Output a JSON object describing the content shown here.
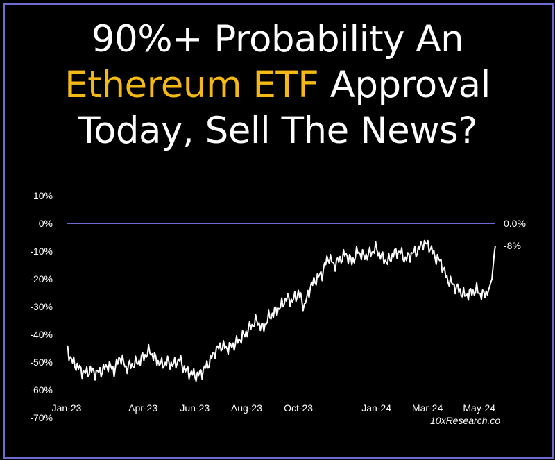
{
  "headline": {
    "line1": "90%+ Probability An",
    "line2_highlight": "Ethereum ETF",
    "line2_rest": " Approval",
    "line3": "Today, Sell The News?"
  },
  "source": "10xResearch.co",
  "colors": {
    "background": "#000000",
    "border": "#6b6bd0",
    "highlight": "#f5b915",
    "series": "#ffffff",
    "reference_line": "#6b6bd0"
  },
  "chart_data": {
    "type": "line",
    "title": "",
    "xlabel": "",
    "ylabel": "",
    "ylim": [
      -70,
      10
    ],
    "xlim": [
      "2023-01-01",
      "2024-05-20"
    ],
    "y_ticks": [
      10,
      0,
      -10,
      -20,
      -30,
      -40,
      -50,
      -60,
      -70
    ],
    "y_tick_labels": [
      "10%",
      "0%",
      "-10%",
      "-20%",
      "-30%",
      "-40%",
      "-50%",
      "-60%",
      "-70%"
    ],
    "x_ticks": [
      "2023-01-01",
      "2023-04-01",
      "2023-06-01",
      "2023-08-01",
      "2023-10-01",
      "2024-01-01",
      "2024-03-01",
      "2024-05-01"
    ],
    "x_tick_labels": [
      "Jan-23",
      "Apr-23",
      "Jun-23",
      "Aug-23",
      "Oct-23",
      "Jan-24",
      "Mar-24",
      "May-24"
    ],
    "grid": false,
    "legend": "none",
    "reference_line": {
      "y": 0,
      "label": "0.0%"
    },
    "end_label": "-8%",
    "series": [
      {
        "x": [
          "2023-01-01",
          "2023-01-08",
          "2023-01-15",
          "2023-01-22",
          "2023-01-29",
          "2023-02-05",
          "2023-02-12",
          "2023-02-19",
          "2023-02-26",
          "2023-03-05",
          "2023-03-12",
          "2023-03-19",
          "2023-03-26",
          "2023-04-02",
          "2023-04-09",
          "2023-04-16",
          "2023-04-23",
          "2023-04-30",
          "2023-05-07",
          "2023-05-14",
          "2023-05-21",
          "2023-05-28",
          "2023-06-04",
          "2023-06-11",
          "2023-06-18",
          "2023-06-25",
          "2023-07-02",
          "2023-07-09",
          "2023-07-16",
          "2023-07-23",
          "2023-07-30",
          "2023-08-06",
          "2023-08-13",
          "2023-08-20",
          "2023-08-27",
          "2023-09-03",
          "2023-09-10",
          "2023-09-17",
          "2023-09-24",
          "2023-10-01",
          "2023-10-08",
          "2023-10-15",
          "2023-10-22",
          "2023-10-29",
          "2023-11-05",
          "2023-11-12",
          "2023-11-19",
          "2023-11-26",
          "2023-12-03",
          "2023-12-10",
          "2023-12-17",
          "2023-12-24",
          "2023-12-31",
          "2024-01-07",
          "2024-01-14",
          "2024-01-21",
          "2024-01-28",
          "2024-02-04",
          "2024-02-11",
          "2024-02-18",
          "2024-02-25",
          "2024-03-03",
          "2024-03-10",
          "2024-03-17",
          "2024-03-24",
          "2024-03-31",
          "2024-04-07",
          "2024-04-14",
          "2024-04-21",
          "2024-04-28",
          "2024-05-05",
          "2024-05-12",
          "2024-05-16",
          "2024-05-19",
          "2024-05-20"
        ],
        "values": [
          -45,
          -50,
          -52,
          -54,
          -53,
          -54,
          -53,
          -51,
          -53,
          -48,
          -52,
          -51,
          -50,
          -48,
          -46,
          -49,
          -51,
          -50,
          -51,
          -49,
          -53,
          -54,
          -55,
          -53,
          -50,
          -46,
          -44,
          -45,
          -44,
          -42,
          -40,
          -37,
          -35,
          -38,
          -34,
          -32,
          -30,
          -27,
          -28,
          -25,
          -30,
          -23,
          -20,
          -18,
          -12,
          -15,
          -13,
          -11,
          -14,
          -10,
          -12,
          -11,
          -9,
          -12,
          -14,
          -11,
          -10,
          -13,
          -11,
          -10,
          -7,
          -8,
          -12,
          -14,
          -20,
          -22,
          -24,
          -26,
          -25,
          -24,
          -26,
          -24,
          -20,
          -10,
          -8
        ]
      }
    ]
  }
}
